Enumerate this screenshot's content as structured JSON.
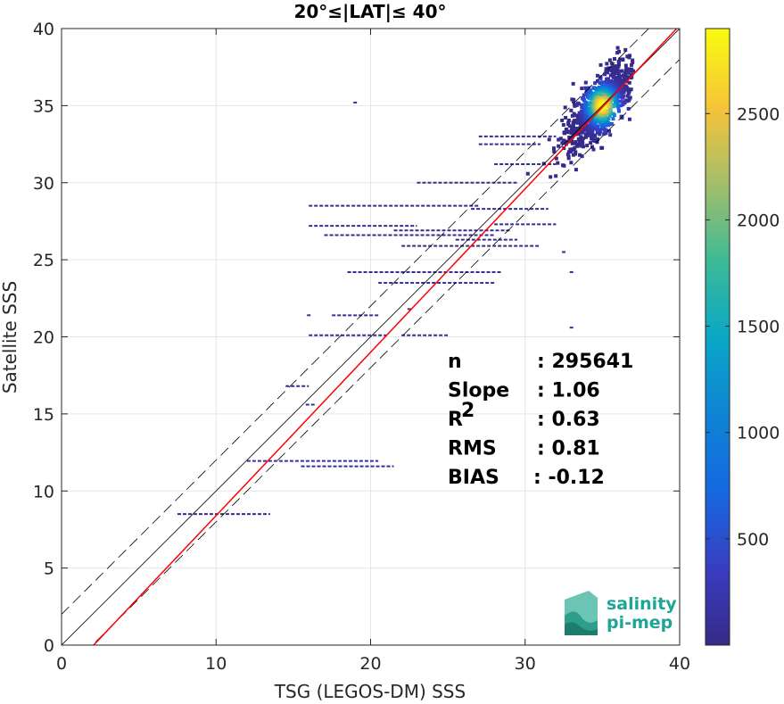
{
  "chart_data": {
    "type": "scatter",
    "title": "20°≤|LAT|≤ 40°",
    "xlabel": "TSG (LEGOS-DM) SSS",
    "ylabel": "Satellite SSS",
    "xlim": [
      0,
      40
    ],
    "ylim": [
      0,
      40
    ],
    "xticks": [
      "0",
      "10",
      "20",
      "30",
      "40"
    ],
    "yticks": [
      "0",
      "5",
      "10",
      "15",
      "20",
      "25",
      "30",
      "35",
      "40"
    ],
    "grid": true,
    "colormap": "parula",
    "colorbar": {
      "range": [
        0,
        2900
      ],
      "ticks": [
        "500",
        "1000",
        "1500",
        "2000",
        "2500"
      ]
    },
    "reference_lines": [
      {
        "name": "1:1",
        "slope": 1,
        "intercept": 0,
        "color": "#000000",
        "style": "solid"
      },
      {
        "name": "+2",
        "slope": 1,
        "intercept": 2,
        "color": "#000000",
        "style": "dashed"
      },
      {
        "name": "-2",
        "slope": 1,
        "intercept": -2,
        "color": "#000000",
        "style": "dashed"
      },
      {
        "name": "fit",
        "slope": 1.06,
        "intercept": -2.2,
        "color": "#ff0000",
        "style": "solid"
      }
    ],
    "stats": [
      {
        "label": "n",
        "value": ": 295641"
      },
      {
        "label": "Slope",
        "value": ": 1.06"
      },
      {
        "label": "R",
        "sup": "2",
        "value": ": 0.63"
      },
      {
        "label": "RMS",
        "value": ": 0.81"
      },
      {
        "label": "BIAS",
        "value": ": -0.12"
      }
    ],
    "density_peak": {
      "x": 35,
      "y": 35,
      "count": 2900
    },
    "segments": [
      {
        "x0": 12,
        "x1": 20.5,
        "y": 11.95,
        "c": 160
      },
      {
        "x0": 15.5,
        "x1": 21.5,
        "y": 11.6,
        "c": 60
      },
      {
        "x0": 7.5,
        "x1": 13.5,
        "y": 8.5,
        "c": 40
      },
      {
        "x0": 16,
        "x1": 23,
        "y": 27.2,
        "c": 50
      },
      {
        "x0": 17,
        "x1": 28,
        "y": 26.6,
        "c": 40
      },
      {
        "x0": 16,
        "x1": 27,
        "y": 28.5,
        "c": 40
      },
      {
        "x0": 22,
        "x1": 31,
        "y": 25.9,
        "c": 50
      },
      {
        "x0": 20.5,
        "x1": 28,
        "y": 23.5,
        "c": 140
      },
      {
        "x0": 18.5,
        "x1": 28.5,
        "y": 24.2,
        "c": 60
      },
      {
        "x0": 17.5,
        "x1": 20.5,
        "y": 21.4,
        "c": 60
      },
      {
        "x0": 16,
        "x1": 21,
        "y": 20.1,
        "c": 40
      },
      {
        "x0": 22,
        "x1": 25,
        "y": 20.1,
        "c": 40
      },
      {
        "x0": 28,
        "x1": 32,
        "y": 31.2,
        "c": 90
      },
      {
        "x0": 27,
        "x1": 31,
        "y": 32.5,
        "c": 80
      },
      {
        "x0": 27,
        "x1": 32,
        "y": 33.0,
        "c": 60
      },
      {
        "x0": 28,
        "x1": 32,
        "y": 27.3,
        "c": 60
      },
      {
        "x0": 26.5,
        "x1": 31.5,
        "y": 28.3,
        "c": 50
      },
      {
        "x0": 25.5,
        "x1": 29.5,
        "y": 26.3,
        "c": 40
      },
      {
        "x0": 21.5,
        "x1": 29,
        "y": 26.9,
        "c": 40
      },
      {
        "x0": 14.5,
        "x1": 16,
        "y": 16.8,
        "c": 50
      },
      {
        "x0": 15.8,
        "x1": 16.5,
        "y": 15.6,
        "c": 40
      },
      {
        "x0": 23,
        "x1": 29.5,
        "y": 30.0,
        "c": 50
      }
    ],
    "points": [
      {
        "x": 19,
        "y": 35.2,
        "c": 40
      },
      {
        "x": 33,
        "y": 20.6,
        "c": 40
      },
      {
        "x": 33,
        "y": 24.2,
        "c": 40
      },
      {
        "x": 32.5,
        "y": 25.5,
        "c": 40
      },
      {
        "x": 16,
        "y": 21.4,
        "c": 40
      },
      {
        "x": 22.5,
        "y": 21.8,
        "c": 40
      }
    ]
  },
  "logo": {
    "line1": "salinity",
    "line2": "pi-mep"
  }
}
